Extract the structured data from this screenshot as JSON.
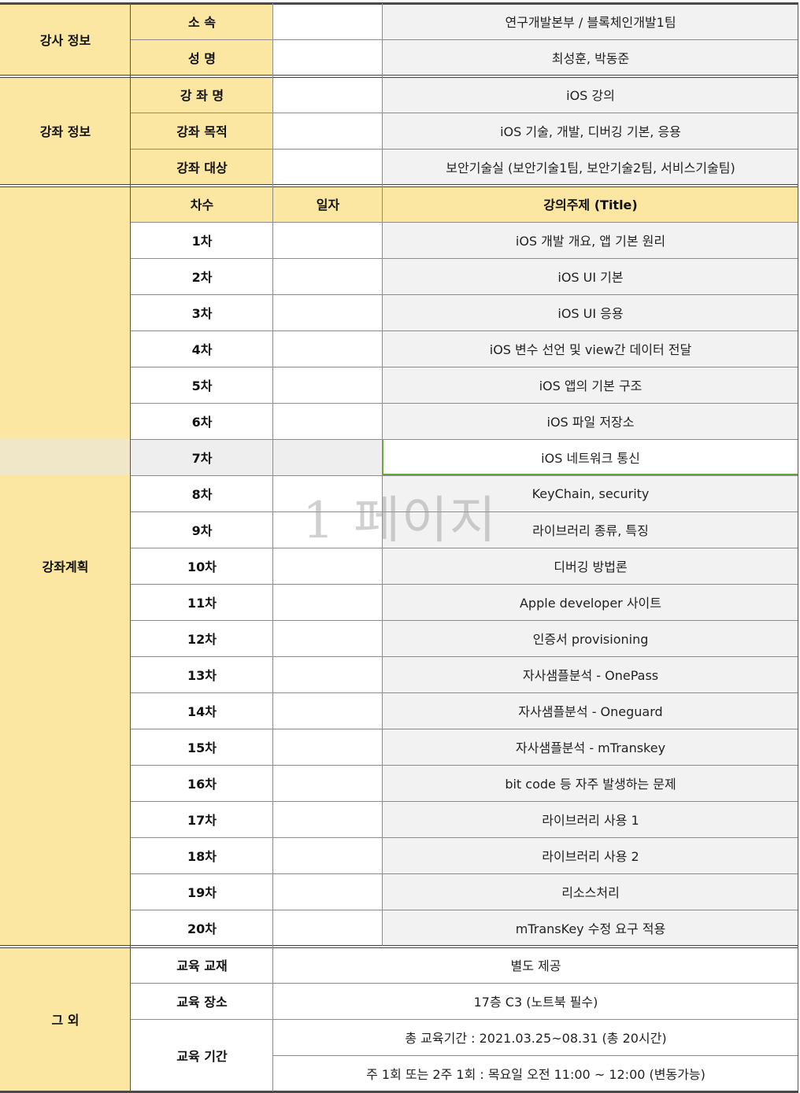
{
  "instructor": {
    "group_label": "강사 정보",
    "rows": [
      {
        "label": "소 속",
        "value": "연구개발본부 / 블록체인개발1팀"
      },
      {
        "label": "성 명",
        "value": "최성훈, 박동준"
      }
    ]
  },
  "course": {
    "group_label": "강좌 정보",
    "rows": [
      {
        "label": "강 좌 명",
        "value": "iOS 강의"
      },
      {
        "label": "강좌 목적",
        "value": "iOS 기술, 개발, 디버깅 기본, 응용"
      },
      {
        "label": "강좌 대상",
        "value": "보안기술실 (보안기술1팀, 보안기술2팀, 서비스기술팀)"
      }
    ]
  },
  "plan": {
    "group_label": "강좌계획",
    "headers": {
      "session": "차수",
      "date": "일자",
      "title": "강의주제 (Title)"
    },
    "selected_index": 6,
    "sessions": [
      {
        "session": "1차",
        "date": "",
        "title": "iOS 개발 개요, 앱 기본 원리"
      },
      {
        "session": "2차",
        "date": "",
        "title": "iOS UI 기본"
      },
      {
        "session": "3차",
        "date": "",
        "title": "iOS UI 응용"
      },
      {
        "session": "4차",
        "date": "",
        "title": "iOS 변수 선언 및 view간 데이터 전달"
      },
      {
        "session": "5차",
        "date": "",
        "title": "iOS 앱의 기본 구조"
      },
      {
        "session": "6차",
        "date": "",
        "title": "iOS 파일 저장소"
      },
      {
        "session": "7차",
        "date": "",
        "title": "iOS 네트워크 통신"
      },
      {
        "session": "8차",
        "date": "",
        "title": "KeyChain, security"
      },
      {
        "session": "9차",
        "date": "",
        "title": "라이브러리 종류, 특징"
      },
      {
        "session": "10차",
        "date": "",
        "title": "디버깅 방법론"
      },
      {
        "session": "11차",
        "date": "",
        "title": "Apple developer 사이트"
      },
      {
        "session": "12차",
        "date": "",
        "title": "인증서 provisioning"
      },
      {
        "session": "13차",
        "date": "",
        "title": "자사샘플분석 - OnePass"
      },
      {
        "session": "14차",
        "date": "",
        "title": "자사샘플분석 - Oneguard"
      },
      {
        "session": "15차",
        "date": "",
        "title": "자사샘플분석 - mTranskey"
      },
      {
        "session": "16차",
        "date": "",
        "title": "bit code 등 자주 발생하는 문제"
      },
      {
        "session": "17차",
        "date": "",
        "title": "라이브러리 사용 1"
      },
      {
        "session": "18차",
        "date": "",
        "title": "라이브러리 사용 2"
      },
      {
        "session": "19차",
        "date": "",
        "title": "리소스처리"
      },
      {
        "session": "20차",
        "date": "",
        "title": "mTransKey 수정 요구 적용"
      }
    ]
  },
  "etc": {
    "group_label": "그 외",
    "materials": {
      "label": "교육 교재",
      "value": "별도 제공"
    },
    "location": {
      "label": "교육 장소",
      "value": "17층 C3 (노트북 필수)"
    },
    "period": {
      "label": "교육 기간",
      "lines": [
        "총 교육기간 : 2021.03.25~08.31 (총 20시간)",
        "주 1회 또는 2주 1회 :  목요일 오전 11:00 ~ 12:00 (변동가능)"
      ]
    }
  },
  "watermark": "1 페이지",
  "colors": {
    "label_bg": "#fbe7a1",
    "value_bg": "#f2f2f2",
    "selection_border": "#63a63a"
  }
}
